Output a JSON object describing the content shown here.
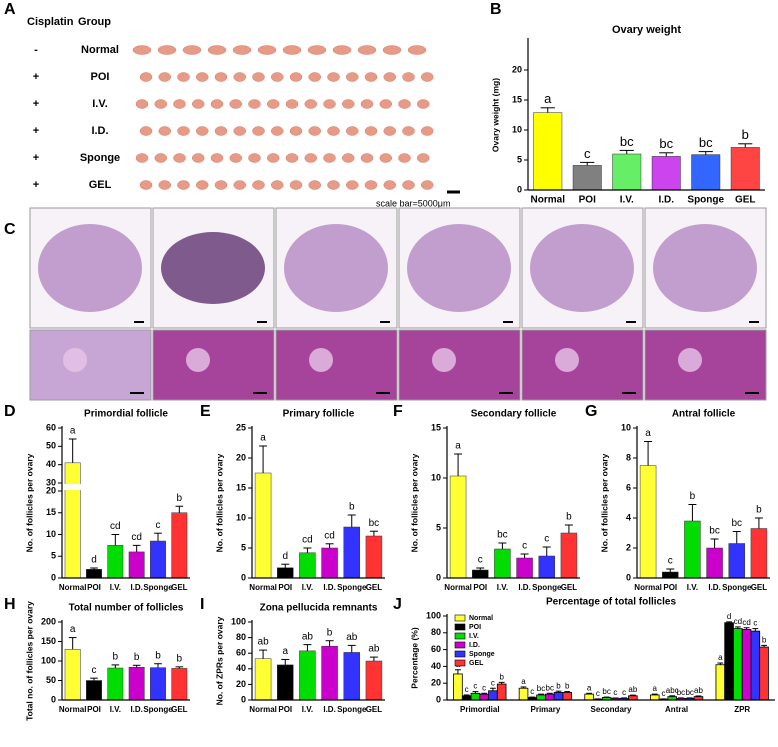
{
  "figure": {
    "panel_labels": [
      "A",
      "B",
      "C",
      "D",
      "E",
      "F",
      "G",
      "H",
      "I",
      "J"
    ],
    "panel_a": {
      "header": [
        "Cisplatin",
        "Group"
      ],
      "rows": [
        [
          "-",
          "Normal"
        ],
        [
          "+",
          "POI"
        ],
        [
          "+",
          "I.V."
        ],
        [
          "+",
          "I.D."
        ],
        [
          "+",
          "Sponge"
        ],
        [
          "+",
          "GEL"
        ]
      ],
      "scale_bar": "scale bar=5000μm"
    }
  },
  "chart_data": [
    {
      "type": "bar",
      "title": "Ovary weight",
      "y_label": "Ovary weight (mg)",
      "categories": [
        "Normal",
        "POI",
        "I.V.",
        "I.D.",
        "Sponge",
        "GEL"
      ],
      "values": [
        12.9,
        4.1,
        6.0,
        5.6,
        5.9,
        7.1
      ],
      "errors": [
        0.8,
        0.5,
        0.6,
        0.6,
        0.5,
        0.6
      ],
      "annotations": [
        "a",
        "c",
        "bc",
        "bc",
        "bc",
        "b"
      ],
      "colors": [
        "#ffff00",
        "#808080",
        "#66ee66",
        "#cc44ee",
        "#3366ff",
        "#ff4444"
      ],
      "ylim": [
        0,
        25
      ],
      "yticks": [
        0,
        5,
        10,
        15,
        20
      ]
    },
    {
      "type": "bar",
      "title": "Primordial follicle",
      "y_label": "No. of follicles per ovary",
      "categories": [
        "Normal",
        "POI",
        "I.V.",
        "I.D.",
        "Sponge",
        "GEL"
      ],
      "values": [
        41,
        2,
        7.5,
        6,
        8.5,
        15
      ],
      "errors": [
        13,
        0.3,
        2.5,
        1.5,
        1.8,
        1.5
      ],
      "annotations": [
        "a",
        "d",
        "cd",
        "cd",
        "c",
        "b"
      ],
      "colors": [
        "#ffff33",
        "#000000",
        "#00dd00",
        "#cc00cc",
        "#3333ff",
        "#ff3333"
      ],
      "ylim": [
        0,
        60
      ],
      "ybreak": [
        20,
        30
      ],
      "yticks": [
        0,
        5,
        10,
        15,
        20,
        30,
        40,
        50,
        60
      ]
    },
    {
      "type": "bar",
      "title": "Primary follicle",
      "y_label": "No. of follicles per ovary",
      "categories": [
        "Normal",
        "POI",
        "I.V.",
        "I.D.",
        "Sponge",
        "GEL"
      ],
      "values": [
        17.5,
        1.7,
        4.2,
        5.0,
        8.5,
        7.0
      ],
      "errors": [
        4.5,
        0.6,
        0.8,
        0.7,
        2.0,
        0.8
      ],
      "annotations": [
        "a",
        "d",
        "cd",
        "cd",
        "b",
        "bc"
      ],
      "colors": [
        "#ffff33",
        "#000000",
        "#00dd00",
        "#cc00cc",
        "#3333ff",
        "#ff3333"
      ],
      "ylim": [
        0,
        25
      ],
      "yticks": [
        0,
        5,
        10,
        15,
        20,
        25
      ]
    },
    {
      "type": "bar",
      "title": "Secondary follicle",
      "y_label": "No. of follicles per ovary",
      "categories": [
        "Normal",
        "POI",
        "I.V.",
        "I.D.",
        "Sponge",
        "GEL"
      ],
      "values": [
        10.2,
        0.8,
        2.9,
        2.0,
        2.2,
        4.5
      ],
      "errors": [
        2.2,
        0.2,
        0.6,
        0.4,
        0.9,
        0.8
      ],
      "annotations": [
        "a",
        "c",
        "bc",
        "c",
        "c",
        "b"
      ],
      "colors": [
        "#ffff33",
        "#000000",
        "#00dd00",
        "#cc00cc",
        "#3333ff",
        "#ff3333"
      ],
      "ylim": [
        0,
        15
      ],
      "yticks": [
        0,
        5,
        10,
        15
      ]
    },
    {
      "type": "bar",
      "title": "Antral follicle",
      "y_label": "No. of follicles per ovary",
      "categories": [
        "Normal",
        "POI",
        "I.V.",
        "I.D.",
        "Sponge",
        "GEL"
      ],
      "values": [
        7.5,
        0.4,
        3.8,
        2.0,
        2.3,
        3.3
      ],
      "errors": [
        1.6,
        0.2,
        1.1,
        0.6,
        0.8,
        0.7
      ],
      "annotations": [
        "a",
        "c",
        "b",
        "bc",
        "bc",
        "b"
      ],
      "colors": [
        "#ffff33",
        "#000000",
        "#00dd00",
        "#cc00cc",
        "#3333ff",
        "#ff3333"
      ],
      "ylim": [
        0,
        10
      ],
      "yticks": [
        0,
        2,
        4,
        6,
        8,
        10
      ]
    },
    {
      "type": "bar",
      "title": "Total number of follicles",
      "y_label": "Total no. of follicles per ovary",
      "categories": [
        "Normal",
        "POI",
        "I.V.",
        "I.D.",
        "Sponge",
        "GEL"
      ],
      "values": [
        130,
        50,
        82,
        84,
        83,
        81
      ],
      "errors": [
        30,
        6,
        8,
        5,
        10,
        4
      ],
      "annotations": [
        "a",
        "c",
        "b",
        "b",
        "b",
        "b"
      ],
      "colors": [
        "#ffff33",
        "#000000",
        "#00dd00",
        "#cc00cc",
        "#3333ff",
        "#ff3333"
      ],
      "ylim": [
        0,
        200
      ],
      "yticks": [
        0,
        50,
        100,
        150,
        200
      ]
    },
    {
      "type": "bar",
      "title": "Zona pellucida remnants",
      "y_label": "No. of ZPRs per ovary",
      "categories": [
        "Normal",
        "POI",
        "I.V.",
        "I.D.",
        "Sponge",
        "GEL"
      ],
      "values": [
        53,
        45,
        63,
        69,
        61,
        50
      ],
      "errors": [
        11,
        7,
        8,
        7,
        9,
        5
      ],
      "annotations": [
        "ab",
        "a",
        "ab",
        "b",
        "ab",
        "ab"
      ],
      "colors": [
        "#ffff33",
        "#000000",
        "#00dd00",
        "#cc00cc",
        "#3333ff",
        "#ff3333"
      ],
      "ylim": [
        0,
        100
      ],
      "yticks": [
        0,
        20,
        40,
        60,
        80,
        100
      ]
    },
    {
      "type": "grouped_bar",
      "title": "Percentage of total follicles",
      "y_label": "Percentage (%)",
      "categories": [
        "Primordial",
        "Primary",
        "Secondary",
        "Antral",
        "ZPR"
      ],
      "series": [
        {
          "name": "Normal",
          "color": "#ffff33",
          "values": [
            31,
            14,
            7,
            6,
            42
          ],
          "errors": [
            5,
            1.5,
            1,
            1,
            2
          ],
          "annotations": [
            "a",
            "a",
            "a",
            "a",
            "a"
          ]
        },
        {
          "name": "POI",
          "color": "#000000",
          "values": [
            5,
            3,
            1,
            1,
            92
          ],
          "errors": [
            1,
            0.5,
            0.3,
            0.3,
            1
          ],
          "annotations": [
            "c",
            "c",
            "c",
            "c",
            "d"
          ]
        },
        {
          "name": "I.V.",
          "color": "#00dd00",
          "values": [
            8,
            6,
            3,
            4,
            85
          ],
          "errors": [
            2,
            1,
            0.5,
            1,
            2
          ],
          "annotations": [
            "c",
            "bc",
            "bc",
            "abc",
            "cd"
          ]
        },
        {
          "name": "I.D.",
          "color": "#cc00cc",
          "values": [
            7,
            7,
            2,
            2,
            84
          ],
          "errors": [
            1,
            1,
            0.4,
            0.5,
            2
          ],
          "annotations": [
            "c",
            "bc",
            "c",
            "bc",
            "cd"
          ]
        },
        {
          "name": "Sponge",
          "color": "#3333ff",
          "values": [
            11,
            9,
            2,
            2,
            82
          ],
          "errors": [
            3,
            1.5,
            0.5,
            0.5,
            3
          ],
          "annotations": [
            "c",
            "b",
            "c",
            "bc",
            "c"
          ]
        },
        {
          "name": "GEL",
          "color": "#ff3333",
          "values": [
            19,
            9,
            5,
            4,
            63
          ],
          "errors": [
            2,
            1,
            0.8,
            0.8,
            2
          ],
          "annotations": [
            "b",
            "b",
            "ab",
            "ab",
            "b"
          ]
        }
      ],
      "ylim": [
        0,
        100
      ],
      "yticks": [
        0,
        20,
        40,
        60,
        80,
        100
      ],
      "legend": "top-left"
    }
  ]
}
